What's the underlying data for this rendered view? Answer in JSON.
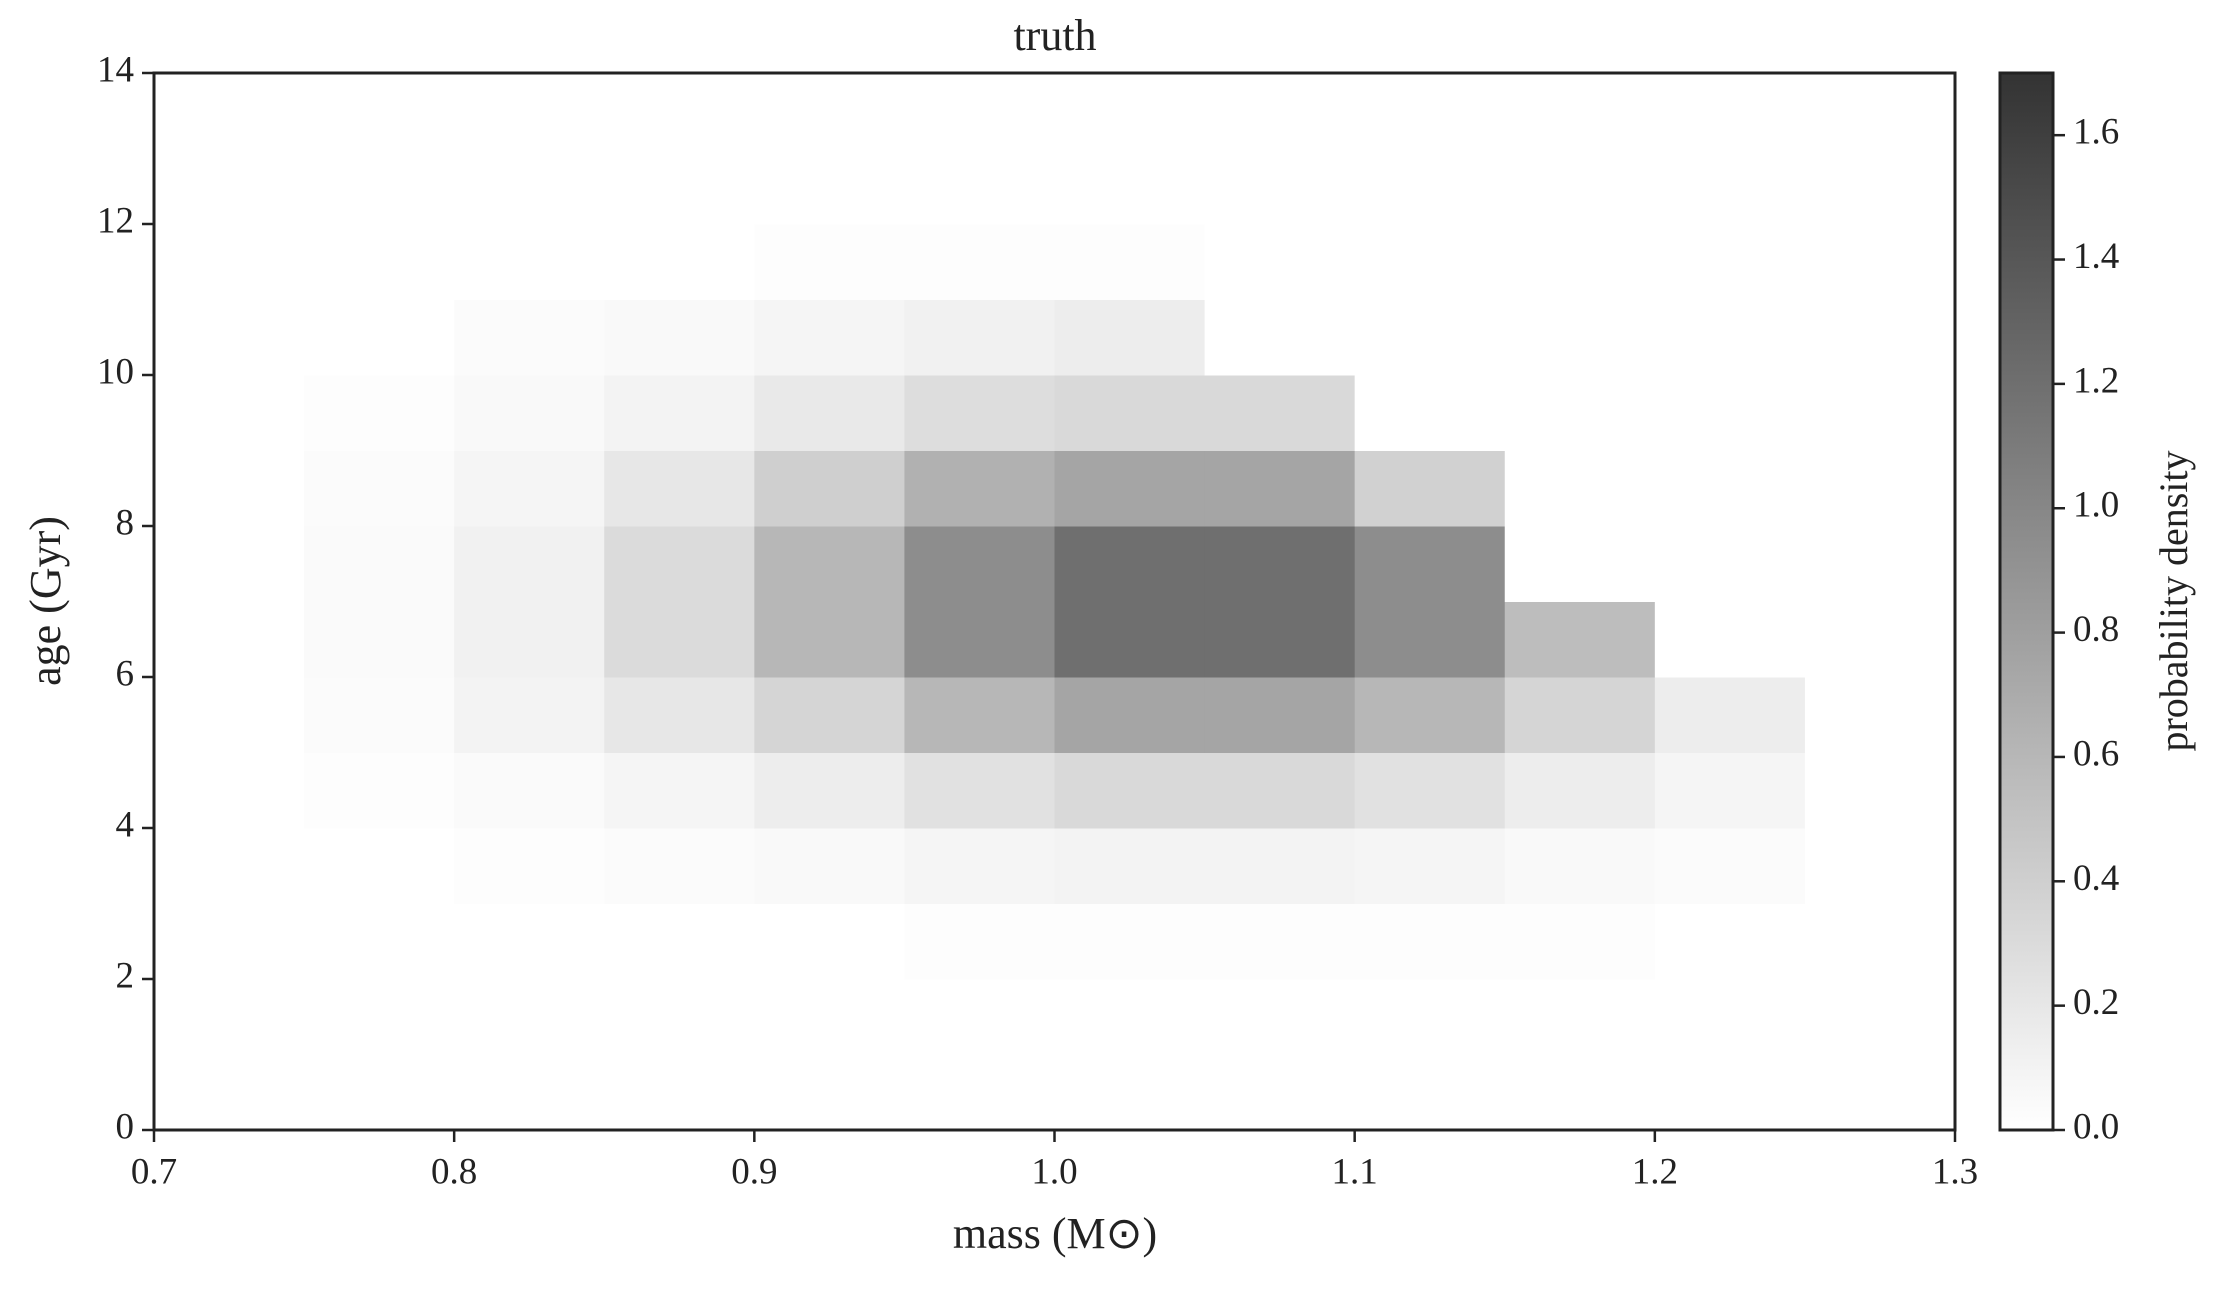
{
  "chart_data": {
    "type": "heatmap",
    "title": "truth",
    "xlabel": "mass (M⊙)",
    "ylabel": "age (Gyr)",
    "colorbar_label": "probability density",
    "xbins": [
      0.7,
      0.75,
      0.8,
      0.85,
      0.9,
      0.95,
      1.0,
      1.05,
      1.1,
      1.15,
      1.2,
      1.25,
      1.3
    ],
    "ybins": [
      0,
      1,
      2,
      3,
      4,
      5,
      6,
      7,
      8,
      9,
      10,
      11,
      12,
      13,
      14
    ],
    "values": [
      [
        0,
        0,
        0,
        0,
        0,
        0,
        0,
        0,
        0,
        0,
        0,
        0
      ],
      [
        0,
        0,
        0,
        0,
        0,
        0,
        0,
        0,
        0,
        0,
        0,
        0
      ],
      [
        0,
        0,
        0,
        0,
        0,
        0.02,
        0.02,
        0.02,
        0.02,
        0.02,
        0,
        0
      ],
      [
        0,
        0,
        0.02,
        0.03,
        0.05,
        0.08,
        0.1,
        0.1,
        0.08,
        0.05,
        0.03,
        0
      ],
      [
        0,
        0.02,
        0.04,
        0.08,
        0.15,
        0.25,
        0.32,
        0.32,
        0.25,
        0.15,
        0.08,
        0
      ],
      [
        0,
        0.03,
        0.1,
        0.2,
        0.35,
        0.6,
        0.75,
        0.75,
        0.6,
        0.35,
        0.15,
        0
      ],
      [
        0,
        0.04,
        0.12,
        0.3,
        0.6,
        0.95,
        1.2,
        1.2,
        0.95,
        0.55,
        0,
        0
      ],
      [
        0,
        0.04,
        0.12,
        0.3,
        0.6,
        0.95,
        1.2,
        1.2,
        0.95,
        0,
        0,
        0
      ],
      [
        0,
        0.03,
        0.08,
        0.2,
        0.4,
        0.65,
        0.75,
        0.75,
        0.38,
        0,
        0,
        0
      ],
      [
        0,
        0.02,
        0.05,
        0.1,
        0.18,
        0.28,
        0.32,
        0.32,
        0,
        0,
        0,
        0
      ],
      [
        0,
        0,
        0.03,
        0.05,
        0.08,
        0.12,
        0.15,
        0,
        0,
        0,
        0,
        0
      ],
      [
        0,
        0,
        0,
        0,
        0.02,
        0.02,
        0.02,
        0,
        0,
        0,
        0,
        0
      ],
      [
        0,
        0,
        0,
        0,
        0,
        0,
        0,
        0,
        0,
        0,
        0,
        0
      ],
      [
        0,
        0,
        0,
        0,
        0,
        0,
        0,
        0,
        0,
        0,
        0,
        0
      ]
    ],
    "cmap": [
      "#ffffff",
      "#333333"
    ],
    "xlim": [
      0.7,
      1.3
    ],
    "ylim": [
      0,
      14
    ],
    "clim": [
      0,
      1.7
    ],
    "xticks": [
      0.7,
      0.8,
      0.9,
      {
        "value": 1,
        "label": "1.0"
      },
      1.1,
      1.2,
      1.3
    ],
    "yticks": [
      0,
      2,
      4,
      6,
      8,
      10,
      12,
      14
    ],
    "cticks": [
      {
        "value": 0,
        "label": "0.0"
      },
      0.2,
      0.4,
      0.6,
      0.8,
      {
        "value": 1,
        "label": "1.0"
      },
      1.2,
      1.4,
      1.6
    ]
  }
}
